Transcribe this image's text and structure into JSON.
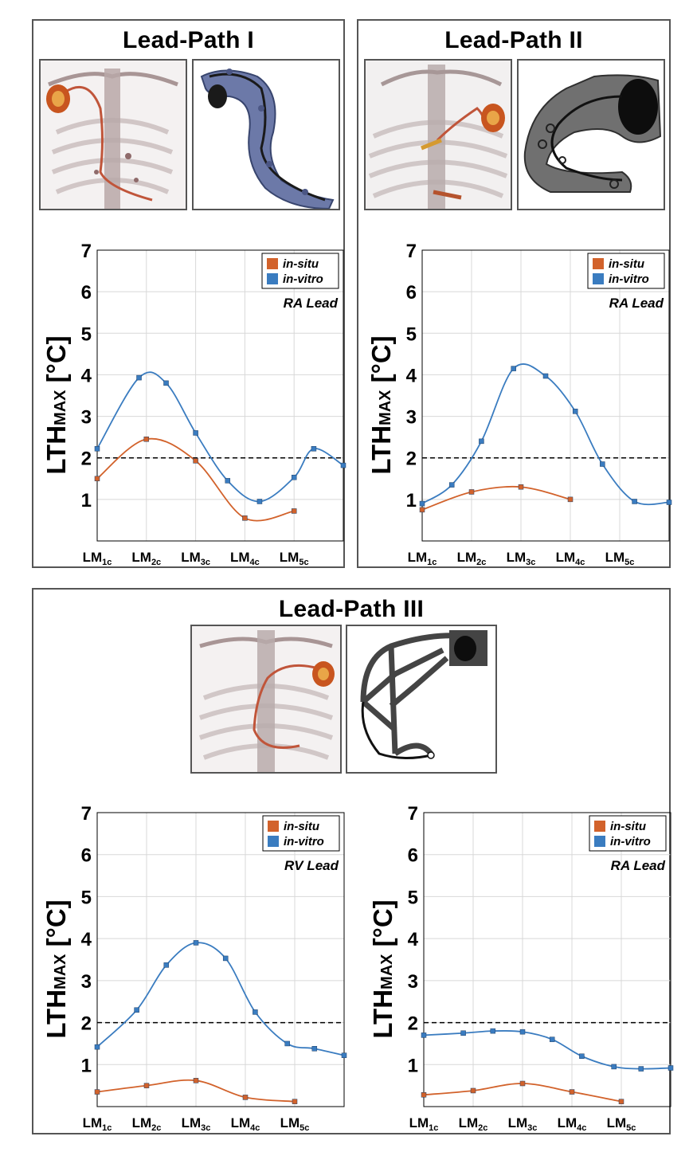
{
  "panels": {
    "p1": {
      "title": "Lead-Path I"
    },
    "p2": {
      "title": "Lead-Path II"
    },
    "p3": {
      "title": "Lead-Path III"
    }
  },
  "colors": {
    "in_situ": "#d2622b",
    "in_vitro": "#3a7cc0"
  },
  "chart_data": [
    {
      "type": "line",
      "lead": "RA Lead",
      "ylabel": "LTH",
      "ylabel_sub": "MAX",
      "ylabel_unit": " [°C]",
      "ylim": [
        0,
        7
      ],
      "xlim": [
        1,
        6
      ],
      "yticks": [
        "1",
        "2",
        "3",
        "4",
        "5",
        "6",
        "7"
      ],
      "xticks": [
        {
          "main": "LM",
          "sub": "1c",
          "x": 1
        },
        {
          "main": "LM",
          "sub": "2c",
          "x": 2
        },
        {
          "main": "LM",
          "sub": "3c",
          "x": 3
        },
        {
          "main": "LM",
          "sub": "4c",
          "x": 4
        },
        {
          "main": "LM",
          "sub": "5c",
          "x": 5
        }
      ],
      "threshold": 2,
      "grid": true,
      "legend": "top-right",
      "series": [
        {
          "name": "in-situ",
          "color_key": "in_situ",
          "x": [
            1.0,
            2.0,
            3.0,
            4.0,
            5.0
          ],
          "y": [
            1.5,
            2.45,
            1.93,
            0.55,
            0.72
          ]
        },
        {
          "name": "in-vitro",
          "color_key": "in_vitro",
          "x": [
            1.0,
            1.85,
            2.4,
            3.0,
            3.65,
            4.3,
            5.0,
            5.4,
            6.0
          ],
          "y": [
            2.22,
            3.93,
            3.8,
            2.6,
            1.45,
            0.95,
            1.53,
            2.22,
            1.82
          ]
        }
      ]
    },
    {
      "type": "line",
      "lead": "RA Lead",
      "ylabel": "LTH",
      "ylabel_sub": "MAX",
      "ylabel_unit": " [°C]",
      "ylim": [
        0,
        7
      ],
      "xlim": [
        1,
        6
      ],
      "yticks": [
        "1",
        "2",
        "3",
        "4",
        "5",
        "6",
        "7"
      ],
      "xticks": [
        {
          "main": "LM",
          "sub": "1c",
          "x": 1
        },
        {
          "main": "LM",
          "sub": "2c",
          "x": 2
        },
        {
          "main": "LM",
          "sub": "3c",
          "x": 3
        },
        {
          "main": "LM",
          "sub": "4c",
          "x": 4
        },
        {
          "main": "LM",
          "sub": "5c",
          "x": 5
        }
      ],
      "threshold": 2,
      "grid": true,
      "legend": "top-right",
      "series": [
        {
          "name": "in-situ",
          "color_key": "in_situ",
          "x": [
            1.0,
            2.0,
            3.0,
            4.0
          ],
          "y": [
            0.75,
            1.18,
            1.3,
            1.0
          ]
        },
        {
          "name": "in-vitro",
          "color_key": "in_vitro",
          "x": [
            1.0,
            1.6,
            2.2,
            2.85,
            3.5,
            4.1,
            4.65,
            5.3,
            6.0
          ],
          "y": [
            0.9,
            1.35,
            2.4,
            4.15,
            3.97,
            3.12,
            1.85,
            0.95,
            0.93
          ]
        }
      ]
    },
    {
      "type": "line",
      "lead": "RV Lead",
      "ylabel": "LTH",
      "ylabel_sub": "MAX",
      "ylabel_unit": " [°C]",
      "ylim": [
        0,
        7
      ],
      "xlim": [
        1,
        6
      ],
      "yticks": [
        "1",
        "2",
        "3",
        "4",
        "5",
        "6",
        "7"
      ],
      "xticks": [
        {
          "main": "LM",
          "sub": "1c",
          "x": 1
        },
        {
          "main": "LM",
          "sub": "2c",
          "x": 2
        },
        {
          "main": "LM",
          "sub": "3c",
          "x": 3
        },
        {
          "main": "LM",
          "sub": "4c",
          "x": 4
        },
        {
          "main": "LM",
          "sub": "5c",
          "x": 5
        }
      ],
      "threshold": 2,
      "grid": true,
      "legend": "top-right",
      "series": [
        {
          "name": "in-situ",
          "color_key": "in_situ",
          "x": [
            1.0,
            2.0,
            3.0,
            4.0,
            5.0
          ],
          "y": [
            0.35,
            0.5,
            0.62,
            0.22,
            0.12
          ]
        },
        {
          "name": "in-vitro",
          "color_key": "in_vitro",
          "x": [
            1.0,
            1.8,
            2.4,
            3.0,
            3.6,
            4.2,
            4.85,
            5.4,
            6.0
          ],
          "y": [
            1.42,
            2.3,
            3.37,
            3.9,
            3.53,
            2.25,
            1.5,
            1.38,
            1.22
          ]
        }
      ]
    },
    {
      "type": "line",
      "lead": "RA Lead",
      "ylabel": "LTH",
      "ylabel_sub": "MAX",
      "ylabel_unit": " [°C]",
      "ylim": [
        0,
        7
      ],
      "xlim": [
        1,
        6
      ],
      "yticks": [
        "1",
        "2",
        "3",
        "4",
        "5",
        "6",
        "7"
      ],
      "xticks": [
        {
          "main": "LM",
          "sub": "1c",
          "x": 1
        },
        {
          "main": "LM",
          "sub": "2c",
          "x": 2
        },
        {
          "main": "LM",
          "sub": "3c",
          "x": 3
        },
        {
          "main": "LM",
          "sub": "4c",
          "x": 4
        },
        {
          "main": "LM",
          "sub": "5c",
          "x": 5
        }
      ],
      "threshold": 2,
      "grid": true,
      "legend": "top-right",
      "series": [
        {
          "name": "in-situ",
          "color_key": "in_situ",
          "x": [
            1.0,
            2.0,
            3.0,
            4.0,
            5.0
          ],
          "y": [
            0.28,
            0.38,
            0.55,
            0.35,
            0.12
          ]
        },
        {
          "name": "in-vitro",
          "color_key": "in_vitro",
          "x": [
            1.0,
            1.8,
            2.4,
            3.0,
            3.6,
            4.2,
            4.85,
            5.4,
            6.0
          ],
          "y": [
            1.7,
            1.75,
            1.8,
            1.78,
            1.6,
            1.2,
            0.95,
            0.9,
            0.92
          ]
        }
      ]
    }
  ]
}
